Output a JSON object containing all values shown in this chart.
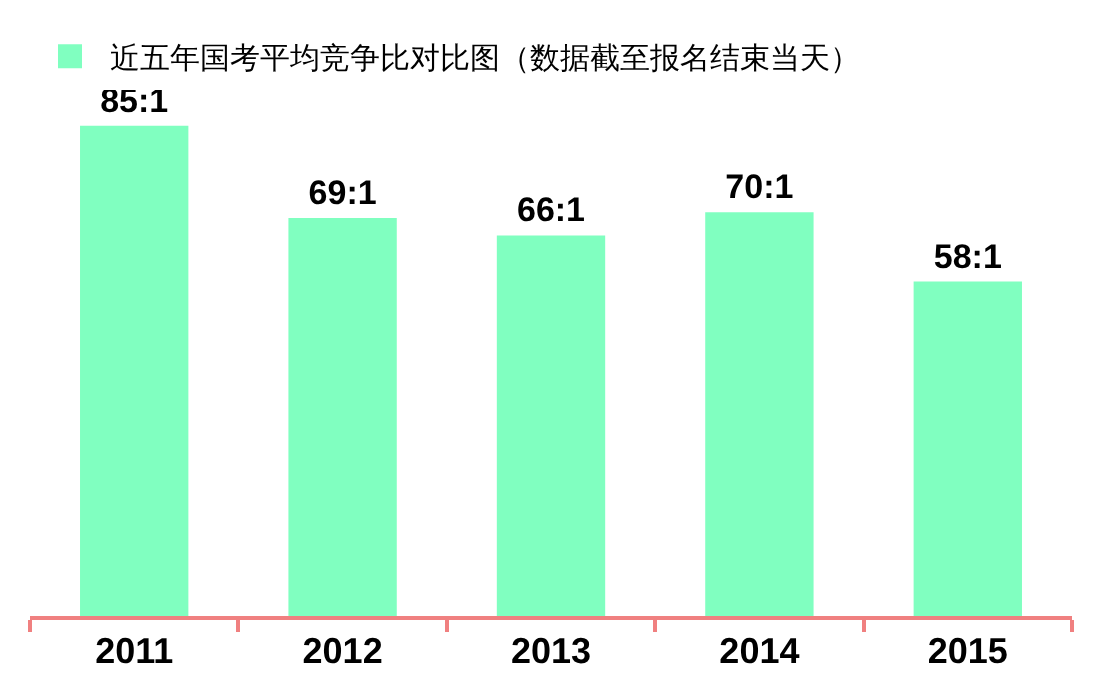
{
  "chart_data": {
    "type": "bar",
    "categories": [
      "2011",
      "2012",
      "2013",
      "2014",
      "2015"
    ],
    "series": [
      {
        "name": "近五年国考平均竞争比对比图（数据截至报名结束当天）",
        "color": "#80ffc0",
        "values": [
          85,
          69,
          66,
          70,
          58
        ],
        "value_labels": [
          "85:1",
          "69:1",
          "66:1",
          "70:1",
          "58:1"
        ]
      }
    ],
    "tick_labels": "x",
    "legend": "top left",
    "grid": false
  }
}
